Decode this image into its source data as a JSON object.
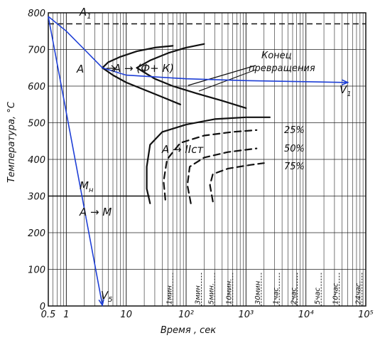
{
  "chart_data": {
    "type": "line",
    "xlabel": "Время , сек",
    "ylabel": "Температура, °С",
    "x_scale": "log",
    "xlim": [
      0.5,
      100000
    ],
    "ylim": [
      0,
      800
    ],
    "x_ticks": [
      {
        "value": 0.5,
        "label": "0.5"
      },
      {
        "value": 1,
        "label": "1"
      },
      {
        "value": 10,
        "label": "10"
      },
      {
        "value": 100,
        "label": "10²"
      },
      {
        "value": 1000,
        "label": "10³"
      },
      {
        "value": 10000,
        "label": "10⁴"
      },
      {
        "value": 100000,
        "label": "10⁵"
      }
    ],
    "y_ticks": [
      0,
      100,
      200,
      300,
      400,
      500,
      600,
      700,
      800
    ],
    "time_marks": [
      {
        "value": 60,
        "label": "1мин"
      },
      {
        "value": 180,
        "label": "3мин"
      },
      {
        "value": 300,
        "label": "5мин."
      },
      {
        "value": 600,
        "label": "10мин."
      },
      {
        "value": 1800,
        "label": "30мин"
      },
      {
        "value": 3600,
        "label": "1час"
      },
      {
        "value": 7200,
        "label": "2час"
      },
      {
        "value": 18000,
        "label": "5час"
      },
      {
        "value": 36000,
        "label": "10час"
      },
      {
        "value": 86400,
        "label": "24час."
      }
    ],
    "reference_lines": [
      {
        "name": "A1",
        "label_main": "A",
        "label_sub": "1",
        "y": 770,
        "style": "dashed"
      },
      {
        "name": "Mн",
        "label_main": "M",
        "label_sub": "н",
        "y": 300,
        "style": "solid"
      }
    ],
    "transformation_curves": [
      {
        "name": "start_pearlite",
        "points": [
          [
            4,
            650
          ],
          [
            5,
            665
          ],
          [
            8,
            680
          ],
          [
            15,
            695
          ],
          [
            30,
            705
          ],
          [
            60,
            710
          ]
        ]
      },
      {
        "name": "start_pearlite_lower",
        "points": [
          [
            4,
            650
          ],
          [
            6,
            630
          ],
          [
            10,
            610
          ],
          [
            20,
            590
          ],
          [
            40,
            570
          ],
          [
            80,
            550
          ]
        ]
      },
      {
        "name": "end_pearlite",
        "points": [
          [
            15,
            650
          ],
          [
            25,
            670
          ],
          [
            50,
            690
          ],
          [
            100,
            705
          ],
          [
            200,
            715
          ]
        ]
      },
      {
        "name": "end_pearlite_lower",
        "points": [
          [
            15,
            650
          ],
          [
            30,
            620
          ],
          [
            60,
            600
          ],
          [
            150,
            580
          ],
          [
            400,
            560
          ],
          [
            1000,
            540
          ]
        ]
      },
      {
        "name": "bainite_start",
        "points": [
          [
            25,
            280
          ],
          [
            22,
            320
          ],
          [
            22,
            380
          ],
          [
            25,
            440
          ],
          [
            40,
            475
          ],
          [
            100,
            495
          ],
          [
            300,
            510
          ],
          [
            1000,
            515
          ],
          [
            2500,
            515
          ]
        ]
      },
      {
        "name": "bainite_25",
        "style": "dashed",
        "points": [
          [
            45,
            290
          ],
          [
            42,
            340
          ],
          [
            48,
            400
          ],
          [
            80,
            445
          ],
          [
            200,
            465
          ],
          [
            600,
            475
          ],
          [
            1500,
            480
          ]
        ]
      },
      {
        "name": "bainite_50",
        "style": "dashed",
        "points": [
          [
            120,
            280
          ],
          [
            105,
            330
          ],
          [
            115,
            380
          ],
          [
            200,
            405
          ],
          [
            500,
            420
          ],
          [
            1500,
            430
          ]
        ]
      },
      {
        "name": "bainite_75",
        "style": "dashed",
        "points": [
          [
            280,
            285
          ],
          [
            250,
            330
          ],
          [
            280,
            360
          ],
          [
            500,
            375
          ],
          [
            1200,
            385
          ],
          [
            2000,
            390
          ]
        ]
      }
    ],
    "cooling_curves": [
      {
        "name": "V1",
        "points": [
          [
            0.5,
            790
          ],
          [
            1,
            750
          ],
          [
            2,
            700
          ],
          [
            4,
            650
          ],
          [
            10,
            630
          ],
          [
            100,
            620
          ],
          [
            1000,
            615
          ],
          [
            10000,
            612
          ],
          [
            50000,
            610
          ]
        ]
      },
      {
        "name": "V5",
        "points": [
          [
            0.5,
            790
          ],
          [
            4,
            0
          ]
        ]
      }
    ],
    "labels": {
      "austenite": "А",
      "pearlite_arrow": "А → (Ф+ К)",
      "bainite_arrow": "А → IIст",
      "martensite_arrow": "А → М",
      "end_label_line1": "Конец",
      "end_label_line2": "превращения",
      "v1": "V",
      "v1_sub": "1",
      "v5": "V",
      "v5_sub": "5",
      "p25": "25%",
      "p50": "50%",
      "p75": "75%"
    }
  }
}
